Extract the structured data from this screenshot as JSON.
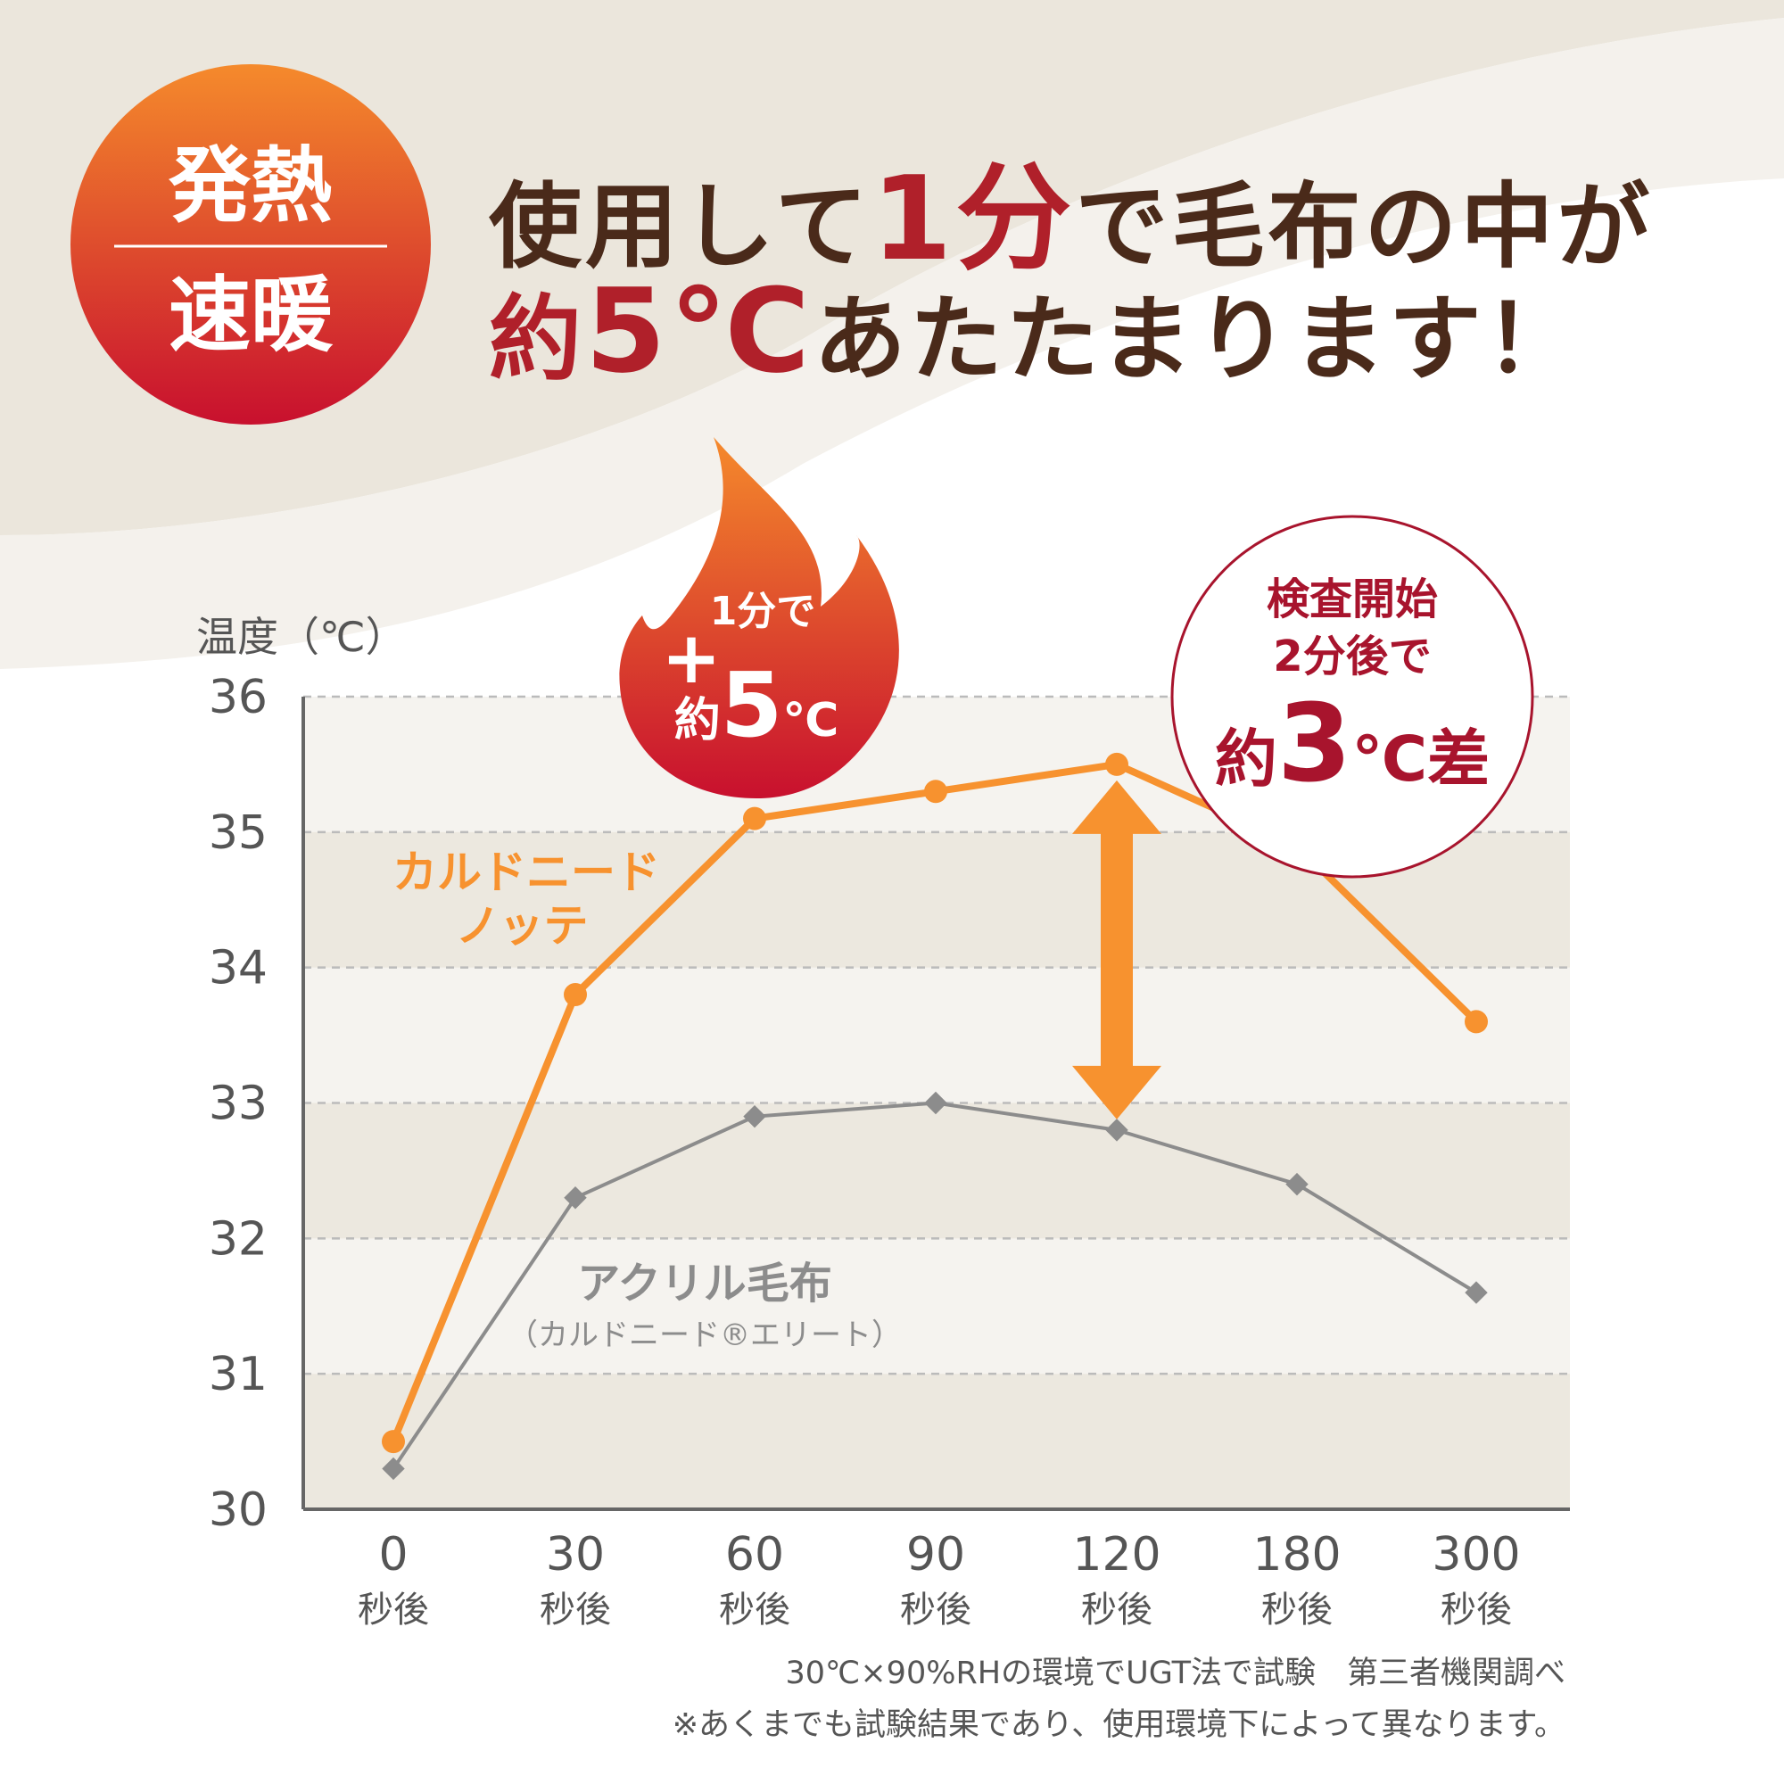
{
  "badge": {
    "top": "発熱",
    "bottom": "速暖"
  },
  "headline": {
    "line1": [
      "使用して",
      "1分",
      "で毛布の中が"
    ],
    "line2": [
      "約",
      "5℃",
      "あたたまります！"
    ]
  },
  "flame_callout": {
    "line1": "1分で",
    "plus": "+",
    "line2a": "約",
    "line2b": "5",
    "line2c": "℃"
  },
  "circle_callout": {
    "line1": "検査開始",
    "line2": "2分後で",
    "line3a": "約",
    "line3b": "3",
    "line3c": "℃差"
  },
  "colors": {
    "orange": "#f7922f",
    "gray": "#8c8c8c",
    "red": "#b0202a",
    "brown": "#4a2a1a"
  },
  "chart_data": {
    "type": "line",
    "ylabel": "温度（℃）",
    "ylim": [
      30,
      36
    ],
    "yticks": [
      "30",
      "31",
      "32",
      "33",
      "34",
      "35",
      "36"
    ],
    "categories": [
      "0",
      "30",
      "60",
      "90",
      "120",
      "180",
      "300"
    ],
    "category_unit": "秒後",
    "grid": true,
    "series": [
      {
        "name": "カルドニードノッテ",
        "label_lines": [
          "カルドニード",
          "ノッテ"
        ],
        "color": "#f7922f",
        "marker": "circle",
        "values": [
          30.5,
          33.8,
          35.1,
          35.3,
          35.5,
          34.9,
          33.6
        ]
      },
      {
        "name": "アクリル毛布",
        "label_lines": [
          "アクリル毛布",
          "（カルドニード®エリート）"
        ],
        "color": "#8c8c8c",
        "marker": "square",
        "values": [
          30.3,
          32.3,
          32.9,
          33.0,
          32.8,
          32.4,
          31.6
        ]
      }
    ],
    "annotations": [
      "30℃×90%RHの環境でUGT法で試験　第三者機関調べ",
      "※あくまでも試験結果であり、使用環境下によって異なります。"
    ]
  }
}
